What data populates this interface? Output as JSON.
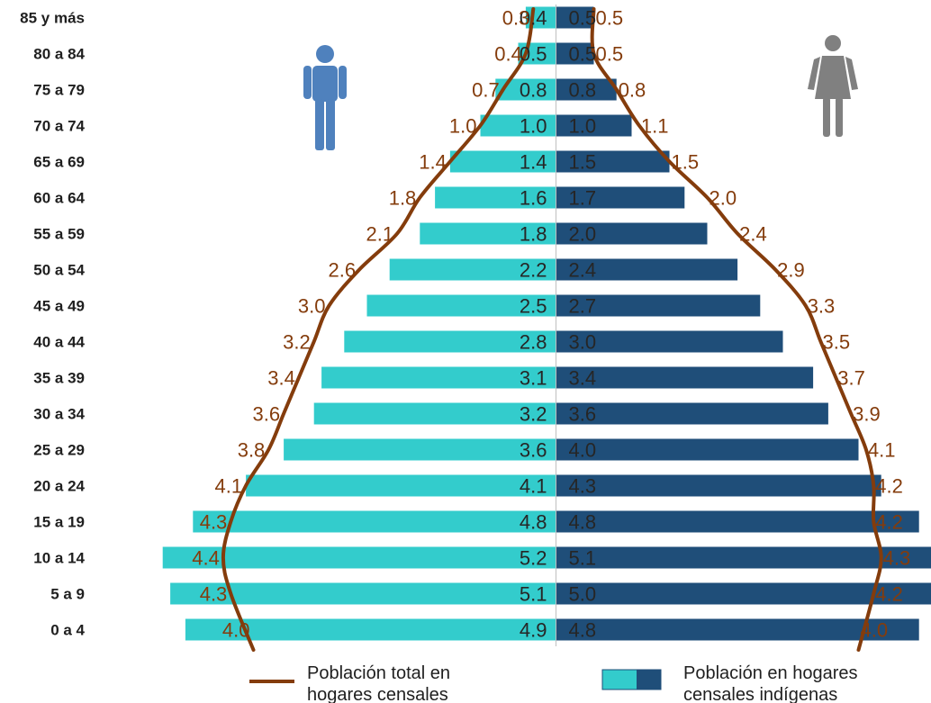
{
  "chart_data": {
    "type": "bar",
    "subtype": "population-pyramid",
    "categories": [
      "85 y más",
      "80 a 84",
      "75 a 79",
      "70 a 74",
      "65 a 69",
      "60 a 64",
      "55 a 59",
      "50 a 54",
      "45 a 49",
      "40 a 44",
      "35 a 39",
      "30 a 34",
      "25 a 29",
      "20 a 24",
      "15 a 19",
      "10 a 14",
      "5 a 9",
      "0 a 4"
    ],
    "series": [
      {
        "name": "Población en hogares censales indígenas",
        "side": "men",
        "color": "#33cccc",
        "values": [
          0.4,
          0.5,
          0.8,
          1.0,
          1.4,
          1.6,
          1.8,
          2.2,
          2.5,
          2.8,
          3.1,
          3.2,
          3.6,
          4.1,
          4.8,
          5.2,
          5.1,
          4.9
        ]
      },
      {
        "name": "Población en hogares censales indígenas",
        "side": "women",
        "color": "#1f4e79",
        "values": [
          0.5,
          0.5,
          0.8,
          1.0,
          1.5,
          1.7,
          2.0,
          2.4,
          2.7,
          3.0,
          3.4,
          3.6,
          4.0,
          4.3,
          4.8,
          5.1,
          5.0,
          4.8
        ]
      },
      {
        "name": "Población total en hogares censales",
        "side": "men",
        "color": "#843c0c",
        "values": [
          0.3,
          0.4,
          0.7,
          1.0,
          1.4,
          1.8,
          2.1,
          2.6,
          3.0,
          3.2,
          3.4,
          3.6,
          3.8,
          4.1,
          4.3,
          4.4,
          4.3,
          4.0
        ]
      },
      {
        "name": "Población total en hogares censales",
        "side": "women",
        "color": "#843c0c",
        "values": [
          0.5,
          0.5,
          0.8,
          1.1,
          1.5,
          2.0,
          2.4,
          2.9,
          3.3,
          3.5,
          3.7,
          3.9,
          4.1,
          4.2,
          4.2,
          4.3,
          4.2,
          4.0
        ]
      }
    ],
    "value_format": "0.0",
    "legend": {
      "position": "bottom",
      "items": [
        {
          "label_line1": "Población total en",
          "label_line2": "hogares censales",
          "symbol": "line",
          "color": "#843c0c"
        },
        {
          "label_line1": "Población en hogares",
          "label_line2": "censales indígenas",
          "symbol": "bars",
          "colors": [
            "#33cccc",
            "#1f4e79"
          ]
        }
      ]
    },
    "icons": {
      "men": "man-icon",
      "women": "woman-icon",
      "men_color": "#4f81bd",
      "women_color": "#808080"
    },
    "grid": false
  }
}
